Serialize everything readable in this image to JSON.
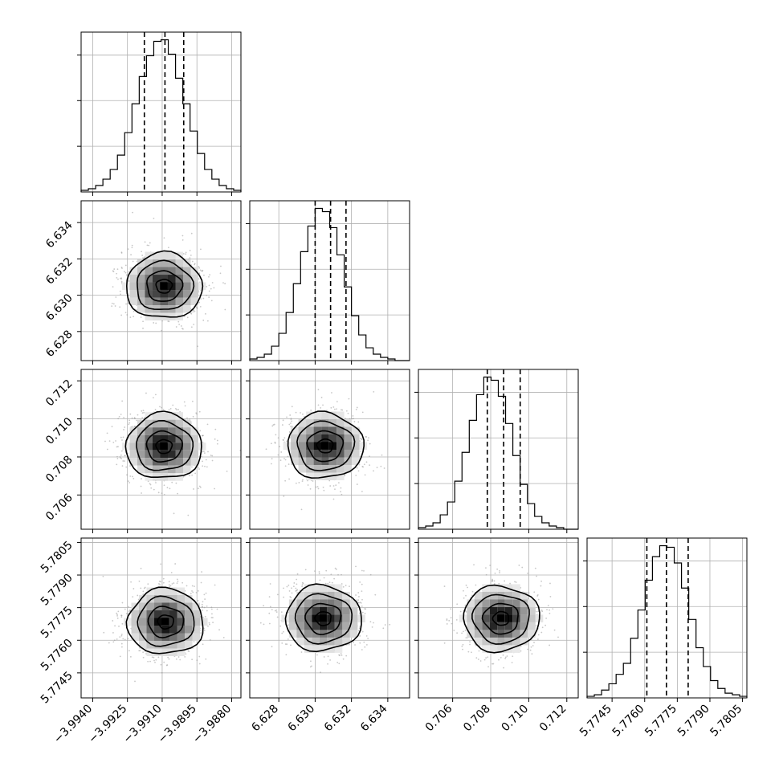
{
  "chart_data": {
    "type": "corner",
    "title": "",
    "params": [
      {
        "index": 0,
        "label": "",
        "range": [
          -3.9945,
          -3.9876
        ],
        "ticks": [
          -3.994,
          -3.9925,
          -3.991,
          -3.9895,
          -3.988
        ],
        "tick_labels": [
          "−3.9940",
          "−3.9925",
          "−3.9910",
          "−3.9895",
          "−3.9880"
        ],
        "quantiles": [
          -3.99177,
          -3.99088,
          -3.99007
        ],
        "hist_counts": [
          1,
          2,
          4,
          8,
          14,
          23,
          37,
          55,
          72,
          85,
          94,
          95,
          86,
          71,
          55,
          38,
          24,
          14,
          8,
          4,
          2,
          1
        ],
        "peak": [
          -3.99092,
          0.0
        ]
      },
      {
        "index": 1,
        "label": "",
        "range": [
          6.6264,
          6.6352
        ],
        "ticks": [
          6.628,
          6.63,
          6.632,
          6.634
        ],
        "tick_labels": [
          "6.628",
          "6.630",
          "6.632",
          "6.634"
        ],
        "quantiles": [
          6.63,
          6.63085,
          6.6317
        ],
        "hist_counts": [
          1,
          2,
          4,
          9,
          17,
          30,
          48,
          68,
          84,
          95,
          93,
          83,
          66,
          46,
          28,
          16,
          8,
          4,
          2,
          1,
          0,
          0
        ],
        "peak": [
          6.63055,
          0.0
        ]
      },
      {
        "index": 2,
        "label": "",
        "range": [
          0.7042,
          0.7126
        ],
        "ticks": [
          0.706,
          0.708,
          0.71,
          0.712
        ],
        "tick_labels": [
          "0.706",
          "0.708",
          "0.710",
          "0.712"
        ],
        "quantiles": [
          0.70782,
          0.70868,
          0.70955
        ],
        "hist_counts": [
          1,
          2,
          4,
          9,
          17,
          30,
          48,
          68,
          84,
          95,
          93,
          83,
          66,
          46,
          28,
          16,
          8,
          4,
          2,
          1,
          0,
          0
        ],
        "peak": [
          0.70855,
          0.0
        ]
      },
      {
        "index": 3,
        "label": "",
        "range": [
          5.77335,
          5.7807
        ],
        "ticks": [
          5.7745,
          5.776,
          5.7775,
          5.779,
          5.7805
        ],
        "tick_labels": [
          "5.7745",
          "5.7760",
          "5.7775",
          "5.7790",
          "5.7805"
        ],
        "quantiles": [
          5.7761,
          5.777,
          5.778
        ],
        "hist_counts": [
          1,
          2,
          5,
          9,
          15,
          22,
          38,
          56,
          75,
          90,
          97,
          96,
          86,
          70,
          50,
          32,
          20,
          11,
          6,
          3,
          2,
          1
        ],
        "peak": [
          5.7769,
          0.0
        ]
      }
    ],
    "pairs": [
      {
        "x": 0,
        "y": 1,
        "peak": [
          -3.99092,
          6.6305
        ]
      },
      {
        "x": 0,
        "y": 2,
        "peak": [
          -3.99092,
          0.70855
        ]
      },
      {
        "x": 1,
        "y": 2,
        "peak": [
          6.63055,
          0.70858
        ]
      },
      {
        "x": 0,
        "y": 3,
        "peak": [
          -3.99085,
          5.77685
        ]
      },
      {
        "x": 1,
        "y": 3,
        "peak": [
          6.63045,
          5.777
        ]
      },
      {
        "x": 2,
        "y": 3,
        "peak": [
          0.70855,
          5.777
        ]
      }
    ],
    "grid": true
  }
}
